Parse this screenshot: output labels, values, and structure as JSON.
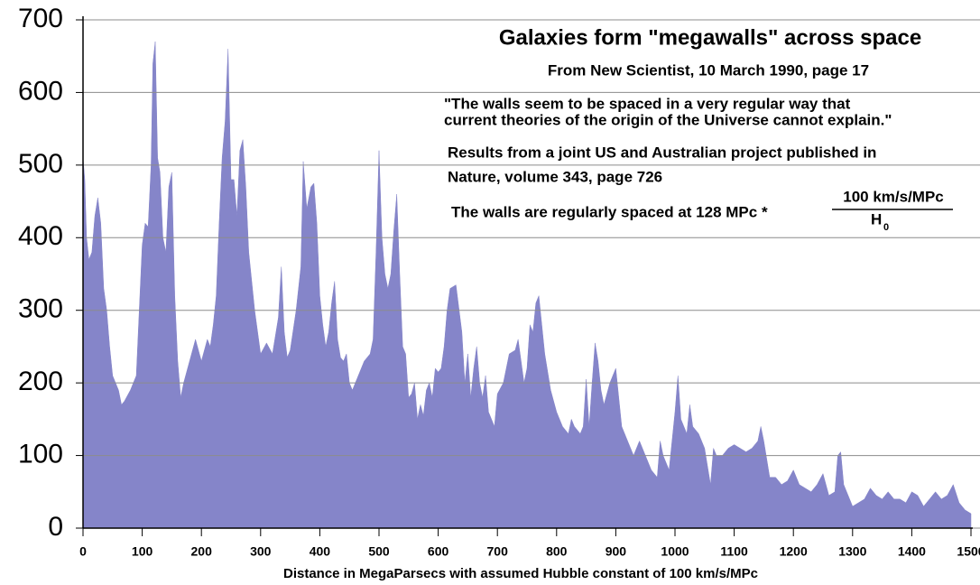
{
  "chart_data": {
    "type": "area",
    "title": "Galaxies form \"megawalls\" across space",
    "subtitle": "From New Scientist, 10 March 1990, page 17",
    "annotations": [
      "\"The walls seem to be spaced in a very regular way that",
      "current theories of the origin of the Universe cannot explain.\"",
      "Results from a joint US and Australian project published in",
      "Nature, volume 343, page 726",
      "The walls are regularly spaced at 128 MPc *"
    ],
    "fraction": {
      "numerator": "100 km/s/MPc",
      "denominator": "H",
      "subscript": "0"
    },
    "xlabel": "Distance in MegaParsecs with assumed Hubble constant of 100 km/s/MPc",
    "color": "#8585c9",
    "grid": true,
    "xlim": [
      0,
      1500
    ],
    "ylim": [
      0,
      700
    ],
    "xticks": [
      0,
      100,
      200,
      300,
      400,
      500,
      600,
      700,
      800,
      900,
      1000,
      1100,
      1200,
      1300,
      1400,
      1500
    ],
    "yticks": [
      0,
      100,
      200,
      300,
      400,
      500,
      600,
      700
    ],
    "x": [
      0,
      3,
      6,
      10,
      15,
      20,
      25,
      30,
      35,
      40,
      45,
      50,
      55,
      60,
      65,
      70,
      80,
      90,
      95,
      100,
      105,
      110,
      115,
      118,
      122,
      126,
      130,
      135,
      140,
      145,
      150,
      155,
      160,
      165,
      170,
      180,
      190,
      200,
      210,
      215,
      220,
      225,
      230,
      235,
      240,
      245,
      250,
      255,
      260,
      265,
      270,
      275,
      280,
      290,
      300,
      310,
      320,
      330,
      335,
      340,
      345,
      350,
      360,
      368,
      372,
      378,
      385,
      390,
      395,
      400,
      405,
      410,
      415,
      420,
      425,
      430,
      435,
      440,
      445,
      450,
      455,
      465,
      475,
      485,
      490,
      495,
      500,
      505,
      510,
      515,
      520,
      525,
      530,
      535,
      540,
      545,
      550,
      555,
      560,
      565,
      570,
      575,
      580,
      585,
      590,
      595,
      600,
      605,
      610,
      615,
      620,
      630,
      640,
      645,
      650,
      655,
      660,
      665,
      670,
      675,
      680,
      685,
      690,
      695,
      700,
      710,
      720,
      730,
      735,
      740,
      745,
      750,
      755,
      760,
      765,
      770,
      775,
      780,
      790,
      800,
      810,
      820,
      825,
      830,
      840,
      845,
      850,
      855,
      860,
      865,
      870,
      875,
      880,
      890,
      900,
      905,
      910,
      920,
      930,
      940,
      950,
      960,
      970,
      975,
      980,
      990,
      1000,
      1005,
      1010,
      1020,
      1025,
      1030,
      1040,
      1050,
      1060,
      1065,
      1070,
      1080,
      1090,
      1100,
      1110,
      1120,
      1130,
      1140,
      1145,
      1150,
      1160,
      1170,
      1180,
      1190,
      1200,
      1210,
      1220,
      1230,
      1240,
      1250,
      1260,
      1270,
      1275,
      1280,
      1285,
      1290,
      1300,
      1310,
      1320,
      1330,
      1340,
      1350,
      1360,
      1370,
      1380,
      1390,
      1400,
      1410,
      1420,
      1430,
      1440,
      1450,
      1460,
      1470,
      1480,
      1490,
      1500
    ],
    "values": [
      510,
      480,
      400,
      370,
      380,
      430,
      455,
      420,
      330,
      300,
      250,
      210,
      200,
      190,
      170,
      175,
      190,
      210,
      300,
      390,
      420,
      415,
      500,
      640,
      670,
      510,
      490,
      400,
      380,
      470,
      490,
      320,
      230,
      180,
      200,
      230,
      260,
      230,
      260,
      250,
      280,
      320,
      420,
      510,
      560,
      660,
      480,
      480,
      430,
      520,
      535,
      470,
      380,
      300,
      240,
      255,
      240,
      290,
      360,
      270,
      235,
      245,
      300,
      360,
      505,
      440,
      470,
      475,
      420,
      320,
      280,
      250,
      270,
      310,
      340,
      260,
      235,
      230,
      240,
      200,
      190,
      210,
      230,
      240,
      260,
      380,
      520,
      400,
      350,
      330,
      350,
      410,
      460,
      350,
      250,
      240,
      180,
      185,
      200,
      150,
      170,
      155,
      190,
      200,
      180,
      220,
      215,
      220,
      250,
      300,
      330,
      335,
      270,
      200,
      240,
      180,
      220,
      250,
      200,
      180,
      210,
      160,
      150,
      140,
      185,
      200,
      240,
      245,
      260,
      230,
      200,
      220,
      280,
      270,
      310,
      320,
      280,
      240,
      190,
      160,
      140,
      130,
      150,
      140,
      130,
      140,
      205,
      140,
      200,
      255,
      230,
      190,
      170,
      200,
      220,
      180,
      140,
      120,
      100,
      120,
      100,
      80,
      70,
      120,
      100,
      80,
      160,
      210,
      150,
      130,
      170,
      140,
      130,
      110,
      60,
      110,
      100,
      100,
      110,
      115,
      110,
      105,
      110,
      120,
      140,
      120,
      70,
      70,
      60,
      65,
      80,
      60,
      55,
      50,
      60,
      75,
      45,
      50,
      100,
      105,
      60,
      50,
      30,
      35,
      40,
      55,
      45,
      40,
      50,
      40,
      40,
      35,
      50,
      45,
      30,
      40,
      50,
      40,
      45,
      60,
      35,
      25,
      20
    ]
  }
}
